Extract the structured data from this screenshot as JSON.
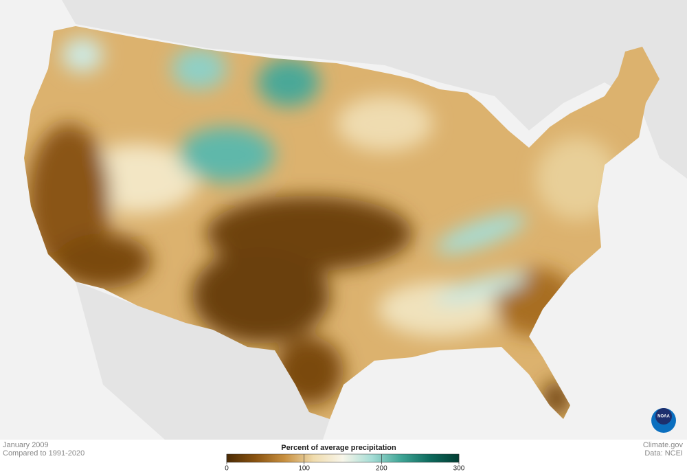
{
  "footer": {
    "date": "January 2009",
    "baseline": "Compared to 1991-2020",
    "credit": "Climate.gov",
    "source": "Data: NCEI"
  },
  "legend": {
    "title": "Percent of average precipitation",
    "range": [
      0,
      300
    ],
    "ticks": [
      0,
      100,
      200,
      300
    ],
    "colors": [
      "#4a2a04",
      "#8a5310",
      "#c89040",
      "#f0dcae",
      "#f8f6ea",
      "#a6ddd6",
      "#3fa596",
      "#0d6a5d",
      "#013d33"
    ]
  },
  "logo": "NOAA"
}
